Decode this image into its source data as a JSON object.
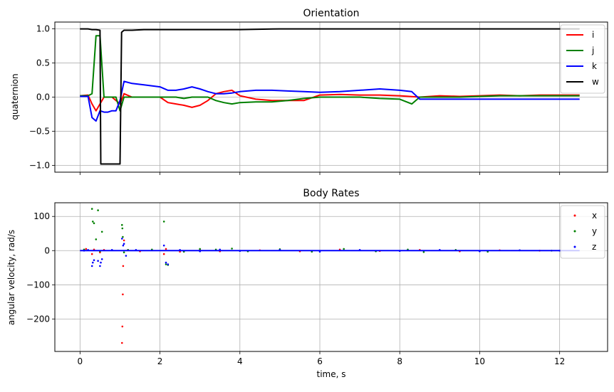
{
  "chart_data": [
    {
      "type": "line",
      "title": "Orientation",
      "xlabel": "",
      "ylabel": "quaternion",
      "xlim": [
        -0.63,
        13.2
      ],
      "ylim": [
        -1.1,
        1.1
      ],
      "xticks": [
        0,
        2,
        4,
        6,
        8,
        10,
        12
      ],
      "yticks": [
        -1.0,
        -0.5,
        0.0,
        0.5,
        1.0
      ],
      "ytick_labels": [
        "−1.0",
        "−0.5",
        "0.0",
        "0.5",
        "1.0"
      ],
      "grid": true,
      "legend": "top-right",
      "series": [
        {
          "name": "i",
          "color": "#ff0000",
          "x": [
            0,
            0.2,
            0.3,
            0.4,
            0.5,
            0.6,
            0.7,
            0.8,
            0.9,
            1.0,
            1.1,
            1.3,
            1.6,
            2.0,
            2.2,
            2.4,
            2.6,
            2.8,
            3.0,
            3.2,
            3.4,
            3.6,
            3.8,
            4.0,
            4.4,
            4.8,
            5.2,
            5.6,
            6.0,
            6.5,
            7.0,
            7.5,
            8.0,
            8.5,
            9.0,
            9.5,
            10.0,
            10.5,
            11.0,
            11.5,
            12.0,
            12.5
          ],
          "y": [
            0.02,
            0.03,
            -0.1,
            -0.2,
            -0.1,
            0.0,
            0.0,
            0.0,
            -0.05,
            -0.1,
            0.05,
            0.0,
            0.0,
            0.0,
            -0.08,
            -0.1,
            -0.12,
            -0.15,
            -0.12,
            -0.05,
            0.05,
            0.08,
            0.1,
            0.02,
            -0.03,
            -0.05,
            -0.05,
            -0.05,
            0.03,
            0.04,
            0.03,
            0.03,
            0.02,
            0.0,
            0.02,
            0.01,
            0.02,
            0.03,
            0.02,
            0.03,
            0.03,
            0.03
          ]
        },
        {
          "name": "j",
          "color": "#008000",
          "x": [
            0,
            0.2,
            0.3,
            0.4,
            0.5,
            0.6,
            0.7,
            0.8,
            0.9,
            1.0,
            1.1,
            1.3,
            1.6,
            2.0,
            2.2,
            2.4,
            2.6,
            2.8,
            3.0,
            3.2,
            3.4,
            3.6,
            3.8,
            4.0,
            4.4,
            4.8,
            5.2,
            5.6,
            6.0,
            6.5,
            7.0,
            7.5,
            8.0,
            8.3,
            8.5,
            9.0,
            9.5,
            10.0,
            10.5,
            11.0,
            11.5,
            12.0,
            12.5
          ],
          "y": [
            0.02,
            0.02,
            0.05,
            0.9,
            0.9,
            0.0,
            0.0,
            0.0,
            0.0,
            -0.2,
            0.0,
            0.0,
            0.0,
            0.0,
            0.0,
            0.0,
            -0.02,
            0.0,
            0.0,
            0.0,
            -0.05,
            -0.08,
            -0.1,
            -0.08,
            -0.07,
            -0.07,
            -0.05,
            -0.02,
            0.0,
            0.0,
            0.0,
            -0.02,
            -0.03,
            -0.1,
            0.0,
            0.0,
            0.0,
            0.01,
            0.02,
            0.02,
            0.02,
            0.02,
            0.02
          ]
        },
        {
          "name": "k",
          "color": "#0000ff",
          "x": [
            0,
            0.2,
            0.3,
            0.4,
            0.5,
            0.6,
            0.7,
            0.8,
            0.9,
            1.0,
            1.1,
            1.3,
            1.6,
            2.0,
            2.2,
            2.4,
            2.6,
            2.8,
            3.0,
            3.2,
            3.4,
            3.6,
            3.8,
            4.0,
            4.4,
            4.8,
            5.2,
            5.6,
            6.0,
            6.5,
            7.0,
            7.5,
            8.0,
            8.3,
            8.5,
            9.0,
            9.5,
            10.0,
            10.5,
            11.0,
            11.5,
            12.0,
            12.5
          ],
          "y": [
            0.01,
            0.01,
            -0.3,
            -0.35,
            -0.2,
            -0.22,
            -0.22,
            -0.2,
            -0.2,
            -0.05,
            0.23,
            0.2,
            0.18,
            0.15,
            0.1,
            0.1,
            0.12,
            0.15,
            0.12,
            0.08,
            0.05,
            0.05,
            0.06,
            0.08,
            0.1,
            0.1,
            0.09,
            0.08,
            0.07,
            0.08,
            0.1,
            0.12,
            0.1,
            0.08,
            -0.03,
            -0.03,
            -0.03,
            -0.03,
            -0.03,
            -0.03,
            -0.03,
            -0.03,
            -0.03
          ]
        },
        {
          "name": "w",
          "color": "#000000",
          "x": [
            0,
            0.2,
            0.3,
            0.4,
            0.5,
            0.52,
            0.6,
            0.8,
            1.0,
            1.04,
            1.1,
            1.3,
            1.6,
            2.0,
            2.5,
            3.0,
            4.0,
            5.0,
            6.0,
            7.0,
            8.0,
            9.0,
            10.0,
            11.0,
            12.0,
            12.5
          ],
          "y": [
            1.0,
            1.0,
            0.99,
            0.99,
            0.98,
            -0.98,
            -0.98,
            -0.98,
            -0.98,
            0.95,
            0.98,
            0.98,
            0.99,
            0.99,
            0.99,
            0.99,
            0.99,
            1.0,
            1.0,
            1.0,
            1.0,
            1.0,
            1.0,
            1.0,
            1.0,
            1.0
          ]
        }
      ]
    },
    {
      "type": "scatter",
      "title": "Body Rates",
      "xlabel": "time, s",
      "ylabel": "angular velocity, rad/s",
      "xlim": [
        -0.63,
        13.2
      ],
      "ylim": [
        -295,
        140
      ],
      "xticks": [
        0,
        2,
        4,
        6,
        8,
        10,
        12
      ],
      "yticks": [
        -200,
        -100,
        0,
        100
      ],
      "ytick_labels": [
        "−200",
        "−100",
        "0",
        "100"
      ],
      "grid": true,
      "legend": "top-right",
      "series": [
        {
          "name": "x",
          "color": "#ff0000",
          "x": [
            0.15,
            0.3,
            0.35,
            0.5,
            0.6,
            1.05,
            1.06,
            1.07,
            1.08,
            1.1,
            1.2,
            1.5,
            2.1,
            2.15,
            2.5,
            3.0,
            3.5,
            4.5,
            5.5,
            6.5,
            7.5,
            8.5,
            9.5,
            10.5,
            11.5
          ],
          "y": [
            5,
            -10,
            3,
            -5,
            2,
            -270,
            -222,
            -128,
            -45,
            30,
            2,
            -2,
            -10,
            5,
            -3,
            2,
            -2,
            1,
            -2,
            3,
            -1,
            2,
            -2,
            1,
            0
          ]
        },
        {
          "name": "y",
          "color": "#008000",
          "x": [
            0.1,
            0.3,
            0.32,
            0.35,
            0.4,
            0.45,
            0.5,
            0.55,
            1.05,
            1.06,
            1.07,
            1.1,
            1.2,
            1.8,
            2.1,
            2.15,
            2.2,
            2.6,
            3.0,
            3.4,
            3.8,
            4.2,
            5.0,
            5.8,
            6.6,
            7.4,
            8.2,
            8.6,
            9.4,
            10.2,
            11.0,
            11.8
          ],
          "y": [
            3,
            122,
            85,
            80,
            33,
            118,
            -2,
            55,
            75,
            65,
            40,
            -5,
            2,
            3,
            85,
            -40,
            -42,
            -3,
            5,
            3,
            6,
            -2,
            4,
            -3,
            5,
            -2,
            3,
            -4,
            2,
            -3,
            1,
            0
          ]
        },
        {
          "name": "z",
          "color": "#0000ff",
          "x": [
            0.1,
            0.2,
            0.3,
            0.32,
            0.35,
            0.45,
            0.5,
            0.52,
            0.55,
            0.8,
            1.05,
            1.08,
            1.1,
            1.15,
            1.4,
            2.1,
            2.15,
            2.2,
            2.5,
            3.0,
            3.5,
            4.0,
            5.0,
            6.0,
            7.0,
            8.0,
            9.0,
            10.0,
            11.0,
            12.0
          ],
          "y": [
            0,
            2,
            -45,
            -35,
            -28,
            -30,
            -45,
            -35,
            -25,
            2,
            35,
            15,
            20,
            -15,
            2,
            15,
            -35,
            -40,
            2,
            -2,
            3,
            -1,
            2,
            -3,
            2,
            -1,
            2,
            -2,
            1,
            0
          ]
        }
      ]
    }
  ]
}
